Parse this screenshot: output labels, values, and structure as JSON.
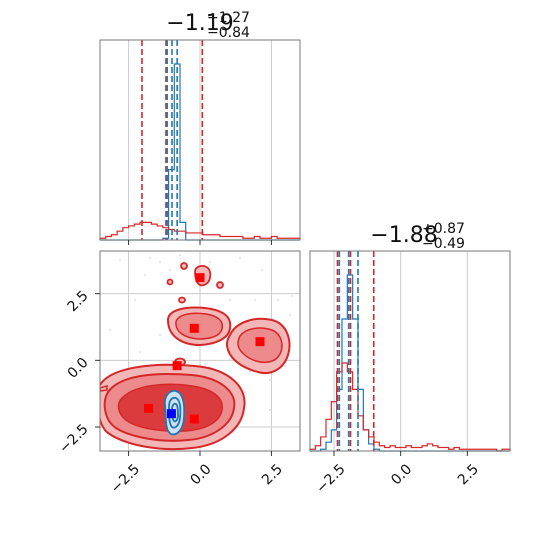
{
  "chart_data": [
    {
      "type": "histogram",
      "panel": "top-left",
      "title": {
        "value": "−1.19",
        "upper": "+1.27",
        "lower": "−0.84"
      },
      "xlim": [
        -3.5,
        3.5
      ],
      "grid": true,
      "x_ticks": [
        -2.5,
        0.0,
        2.5
      ],
      "bin_edges": [
        -3.5,
        -3.3,
        -3.1,
        -2.9,
        -2.7,
        -2.5,
        -2.3,
        -2.1,
        -1.9,
        -1.7,
        -1.5,
        -1.3,
        -1.1,
        -0.9,
        -0.7,
        -0.5,
        -0.3,
        -0.1,
        0.1,
        0.3,
        0.5,
        0.7,
        0.9,
        1.1,
        1.3,
        1.5,
        1.7,
        1.9,
        2.1,
        2.3,
        2.5,
        2.7,
        2.9,
        3.1,
        3.3,
        3.5
      ],
      "series": [
        {
          "color": "#1f77b4",
          "counts": [
            0,
            0,
            0,
            0,
            0,
            0,
            0,
            0,
            0,
            0,
            0,
            1,
            40,
            100,
            10,
            0,
            0,
            0,
            0,
            0,
            0,
            0,
            0,
            0,
            0,
            0,
            0,
            0,
            0,
            0,
            0,
            0,
            0,
            0,
            0
          ]
        },
        {
          "color": "#d62728",
          "counts": [
            1,
            2,
            3,
            5,
            7,
            8,
            9,
            10,
            10,
            9,
            8,
            7,
            6,
            5,
            5,
            4,
            4,
            4,
            3,
            3,
            3,
            2,
            2,
            2,
            2,
            1,
            1,
            2,
            1,
            1,
            2,
            1,
            1,
            1,
            1
          ]
        }
      ],
      "quantile_lines": [
        {
          "color": "#d62728",
          "x": [
            -2.03,
            -1.19,
            0.08
          ]
        },
        {
          "color": "#1f77b4",
          "x": [
            -1.15,
            -0.98,
            -0.8
          ]
        }
      ]
    },
    {
      "type": "contour",
      "panel": "bottom-left",
      "xlim": [
        -3.5,
        3.5
      ],
      "ylim": [
        -3.4,
        4.1
      ],
      "grid": true,
      "x_ticks": [
        -2.5,
        0.0,
        2.5
      ],
      "y_ticks": [
        -2.5,
        0.0,
        2.5
      ],
      "red_markers": [
        {
          "x": 0.0,
          "y": 3.1
        },
        {
          "x": -0.2,
          "y": 1.2
        },
        {
          "x": 2.1,
          "y": 0.7
        },
        {
          "x": -0.8,
          "y": -0.2
        },
        {
          "x": -1.8,
          "y": -1.8
        },
        {
          "x": -0.2,
          "y": -2.2
        }
      ],
      "blue_markers": [
        {
          "x": -1.0,
          "y": -2.0
        }
      ]
    },
    {
      "type": "histogram",
      "panel": "bottom-right",
      "title": {
        "value": "−1.88",
        "upper": "+0.87",
        "lower": "−0.49"
      },
      "xlim": [
        -3.4,
        4.1
      ],
      "grid": true,
      "x_ticks": [
        -2.5,
        0.0,
        2.5
      ],
      "bin_edges": [
        -3.4,
        -3.2,
        -3.0,
        -2.8,
        -2.6,
        -2.4,
        -2.2,
        -2.0,
        -1.8,
        -1.6,
        -1.4,
        -1.2,
        -1.0,
        -0.8,
        -0.6,
        -0.4,
        -0.2,
        0.0,
        0.2,
        0.4,
        0.6,
        0.8,
        1.0,
        1.2,
        1.4,
        1.6,
        1.8,
        2.0,
        2.2,
        2.4,
        2.6,
        2.8,
        3.0,
        3.2,
        3.4,
        3.6,
        3.8,
        4.1
      ],
      "series": [
        {
          "color": "#1f77b4",
          "counts": [
            0,
            0,
            1,
            5,
            12,
            35,
            75,
            100,
            75,
            35,
            12,
            4,
            1,
            0,
            0,
            0,
            0,
            0,
            0,
            0,
            0,
            0,
            0,
            0,
            0,
            0,
            0,
            0,
            0,
            0,
            0,
            0,
            0,
            0,
            0,
            0,
            0
          ]
        },
        {
          "color": "#d62728",
          "counts": [
            1,
            3,
            8,
            18,
            28,
            45,
            50,
            45,
            35,
            20,
            12,
            8,
            5,
            3,
            2,
            3,
            2,
            2,
            3,
            2,
            2,
            3,
            4,
            3,
            2,
            2,
            1,
            2,
            1,
            1,
            1,
            1,
            1,
            1,
            1,
            0,
            1
          ]
        }
      ],
      "quantile_lines": [
        {
          "color": "#d62728",
          "x": [
            -2.37,
            -1.88,
            -1.01
          ]
        },
        {
          "color": "#1f77b4",
          "x": [
            -2.3,
            -1.95,
            -1.6
          ]
        }
      ]
    }
  ]
}
